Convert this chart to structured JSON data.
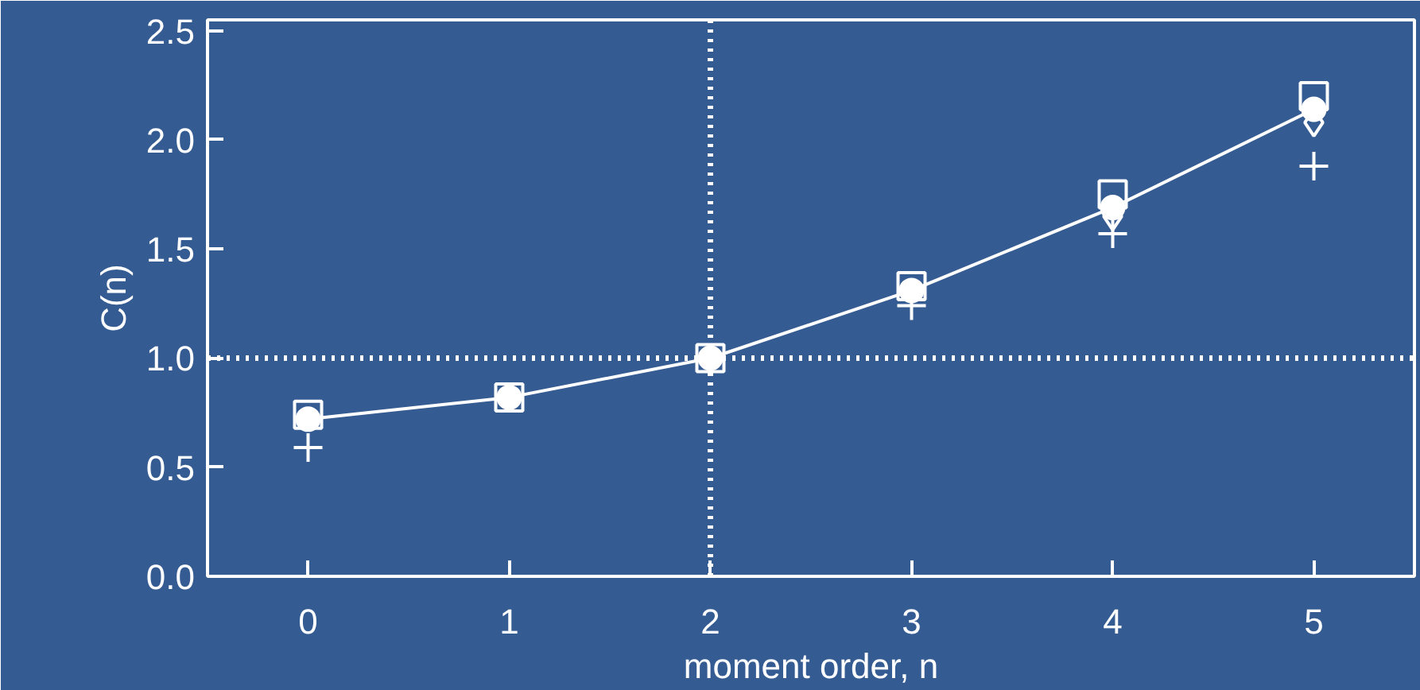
{
  "chart_data": {
    "type": "scatter",
    "xlabel": "moment order, n",
    "ylabel": "C(n)",
    "x": [
      0,
      1,
      2,
      3,
      4,
      5
    ],
    "series": [
      {
        "marker": "square",
        "color": "#ffffff",
        "values": [
          0.74,
          0.82,
          1.0,
          1.33,
          1.75,
          2.2
        ]
      },
      {
        "marker": "diamond",
        "color": "#ffffff",
        "values": [
          null,
          null,
          null,
          null,
          1.65,
          2.08
        ]
      },
      {
        "marker": "cross",
        "color": "#ffffff",
        "values": [
          0.59,
          null,
          null,
          1.24,
          1.57,
          1.88
        ]
      },
      {
        "type": "line",
        "marker": "circle",
        "color": "#ffffff",
        "values": [
          0.72,
          0.82,
          1.0,
          1.31,
          1.69,
          2.14
        ]
      }
    ],
    "xlim": [
      -0.5,
      5.5
    ],
    "ylim": [
      0,
      2.55
    ],
    "xticks": [
      0,
      1,
      2,
      3,
      4,
      5
    ],
    "yticks": [
      {
        "value": 0,
        "label": "0.0"
      },
      {
        "value": 0.5,
        "label": "0.5"
      },
      {
        "value": 1,
        "label": "1.0"
      },
      {
        "value": 1.5,
        "label": "1.5"
      },
      {
        "value": 2,
        "label": "2.0"
      },
      {
        "value": 2.5,
        "label": "2.5"
      }
    ],
    "ref_lines": [
      {
        "axis": "x",
        "value": 2,
        "line_style": "dotted",
        "color": "#ffffff"
      },
      {
        "axis": "y",
        "value": 1,
        "line_style": "dotted",
        "color": "#ffffff"
      }
    ],
    "grid": false
  }
}
